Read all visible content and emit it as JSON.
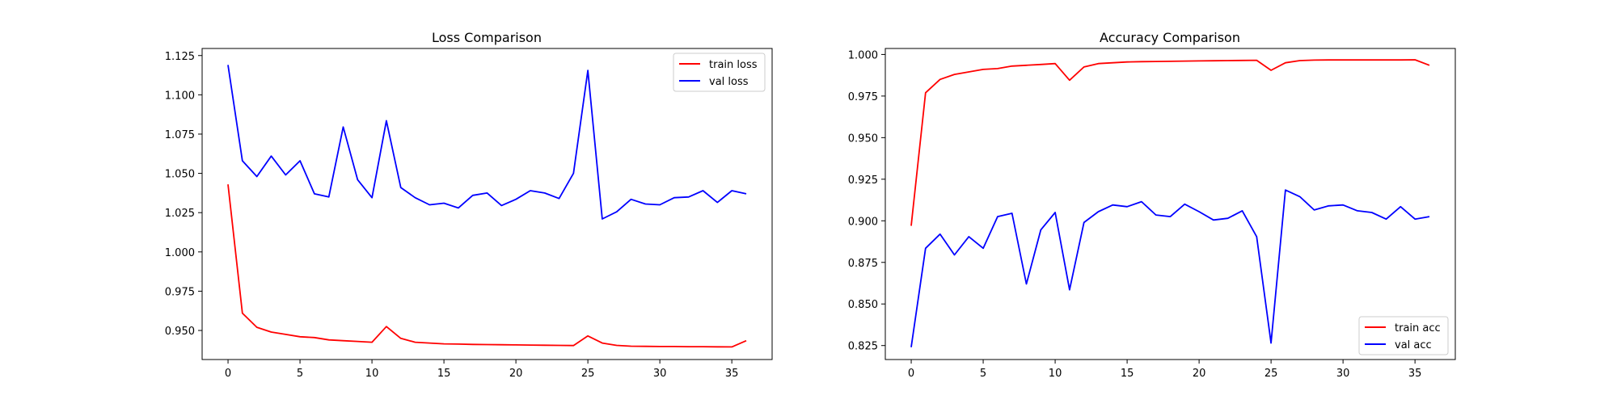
{
  "chart_data": [
    {
      "type": "line",
      "title": "Loss Comparison",
      "xlabel": "",
      "ylabel": "",
      "xlim": [
        -1.8,
        37.8
      ],
      "ylim": [
        0.9315,
        1.1295
      ],
      "xticks": [
        0,
        5,
        10,
        15,
        20,
        25,
        30,
        35
      ],
      "yticks": [
        0.95,
        0.975,
        1.0,
        1.025,
        1.05,
        1.075,
        1.1,
        1.125
      ],
      "ytick_labels": [
        "0.950",
        "0.975",
        "1.000",
        "1.025",
        "1.050",
        "1.075",
        "1.100",
        "1.125"
      ],
      "grid": false,
      "legend_position": "upper right",
      "series": [
        {
          "name": "train loss",
          "color": "#ff0000",
          "x": [
            0,
            1,
            2,
            3,
            4,
            5,
            6,
            7,
            8,
            9,
            10,
            11,
            12,
            13,
            14,
            15,
            16,
            17,
            18,
            19,
            20,
            21,
            22,
            23,
            24,
            25,
            26,
            27,
            28,
            29,
            30,
            31,
            32,
            33,
            34,
            35,
            36
          ],
          "values": [
            1.043,
            0.961,
            0.952,
            0.949,
            0.9475,
            0.946,
            0.9455,
            0.944,
            0.9435,
            0.943,
            0.9425,
            0.9525,
            0.945,
            0.9425,
            0.942,
            0.9415,
            0.9413,
            0.9411,
            0.941,
            0.9409,
            0.9408,
            0.9407,
            0.9406,
            0.9405,
            0.9404,
            0.9465,
            0.942,
            0.9405,
            0.94,
            0.9399,
            0.9398,
            0.9398,
            0.9397,
            0.9397,
            0.9396,
            0.9395,
            0.9435
          ]
        },
        {
          "name": "val loss",
          "color": "#0000ff",
          "x": [
            0,
            1,
            2,
            3,
            4,
            5,
            6,
            7,
            8,
            9,
            10,
            11,
            12,
            13,
            14,
            15,
            16,
            17,
            18,
            19,
            20,
            21,
            22,
            23,
            24,
            25,
            26,
            27,
            28,
            29,
            30,
            31,
            32,
            33,
            34,
            35,
            36
          ],
          "values": [
            1.119,
            1.058,
            1.048,
            1.061,
            1.049,
            1.058,
            1.037,
            1.035,
            1.0795,
            1.046,
            1.0345,
            1.0835,
            1.041,
            1.0345,
            1.03,
            1.031,
            1.028,
            1.036,
            1.0375,
            1.0295,
            1.0335,
            1.039,
            1.0375,
            1.034,
            1.05,
            1.1155,
            1.021,
            1.0255,
            1.0335,
            1.0305,
            1.03,
            1.0345,
            1.035,
            1.039,
            1.0315,
            1.039,
            1.037
          ]
        }
      ]
    },
    {
      "type": "line",
      "title": "Accuracy Comparison",
      "xlabel": "",
      "ylabel": "",
      "xlim": [
        -1.8,
        37.8
      ],
      "ylim": [
        0.8166,
        1.0036
      ],
      "xticks": [
        0,
        5,
        10,
        15,
        20,
        25,
        30,
        35
      ],
      "yticks": [
        0.825,
        0.85,
        0.875,
        0.9,
        0.925,
        0.95,
        0.975,
        1.0
      ],
      "ytick_labels": [
        "0.825",
        "0.850",
        "0.875",
        "0.900",
        "0.925",
        "0.950",
        "0.975",
        "1.000"
      ],
      "grid": false,
      "legend_position": "lower right",
      "series": [
        {
          "name": "train acc",
          "color": "#ff0000",
          "x": [
            0,
            1,
            2,
            3,
            4,
            5,
            6,
            7,
            8,
            9,
            10,
            11,
            12,
            13,
            14,
            15,
            16,
            17,
            18,
            19,
            20,
            21,
            22,
            23,
            24,
            25,
            26,
            27,
            28,
            29,
            30,
            31,
            32,
            33,
            34,
            35,
            36
          ],
          "values": [
            0.897,
            0.977,
            0.985,
            0.988,
            0.9895,
            0.991,
            0.9915,
            0.993,
            0.9935,
            0.994,
            0.9945,
            0.9845,
            0.9925,
            0.9945,
            0.995,
            0.9955,
            0.9957,
            0.9958,
            0.9959,
            0.996,
            0.9961,
            0.9962,
            0.9963,
            0.9964,
            0.9965,
            0.9905,
            0.995,
            0.9963,
            0.9966,
            0.9967,
            0.9967,
            0.9967,
            0.9967,
            0.9967,
            0.9967,
            0.9968,
            0.9935
          ]
        },
        {
          "name": "val acc",
          "color": "#0000ff",
          "x": [
            0,
            1,
            2,
            3,
            4,
            5,
            6,
            7,
            8,
            9,
            10,
            11,
            12,
            13,
            14,
            15,
            16,
            17,
            18,
            19,
            20,
            21,
            22,
            23,
            24,
            25,
            26,
            27,
            28,
            29,
            30,
            31,
            32,
            33,
            34,
            35,
            36
          ],
          "values": [
            0.824,
            0.8835,
            0.892,
            0.8795,
            0.8905,
            0.8835,
            0.9025,
            0.9045,
            0.862,
            0.8945,
            0.905,
            0.8585,
            0.899,
            0.9055,
            0.9095,
            0.9085,
            0.9115,
            0.9035,
            0.9025,
            0.91,
            0.9055,
            0.9005,
            0.9015,
            0.906,
            0.8905,
            0.8265,
            0.9185,
            0.9145,
            0.9065,
            0.909,
            0.9095,
            0.906,
            0.905,
            0.901,
            0.9085,
            0.901,
            0.9025
          ]
        }
      ]
    }
  ]
}
